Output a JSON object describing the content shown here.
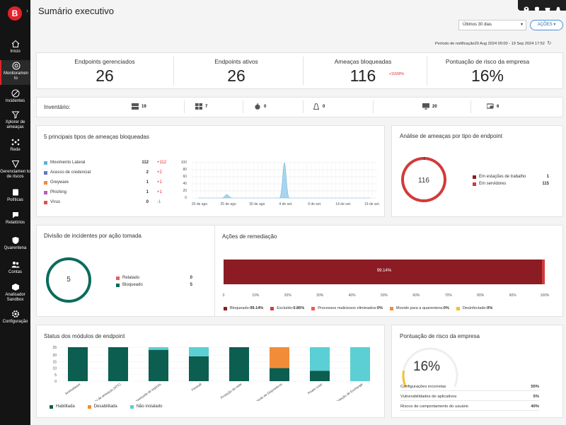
{
  "app": {
    "logo_letter": "B",
    "title": "Sumário executivo"
  },
  "sidebar": {
    "items": [
      {
        "label": "Início",
        "icon": "home-icon"
      },
      {
        "label": "Monitoramen to",
        "icon": "monitor-icon",
        "active": true
      },
      {
        "label": "Incidentes",
        "icon": "incidents-icon"
      },
      {
        "label": "Xplorer de ameaças",
        "icon": "filter-icon"
      },
      {
        "label": "Rede",
        "icon": "network-icon"
      },
      {
        "label": "Gerenciamen to de riscos",
        "icon": "risk-icon"
      },
      {
        "label": "Políticas",
        "icon": "policies-icon"
      },
      {
        "label": "Relatórios",
        "icon": "reports-icon"
      },
      {
        "label": "Quarentena",
        "icon": "quarantine-icon"
      },
      {
        "label": "Contas",
        "icon": "accounts-icon"
      },
      {
        "label": "Analisador Sandbox",
        "icon": "sandbox-icon"
      },
      {
        "label": "Configuração",
        "icon": "settings-icon"
      }
    ]
  },
  "header": {
    "period_select": "Últimos 30 dias",
    "actions_button": "AÇÕES",
    "notification_period": "Período de notificação20 Aug 2024 00:00 - 19 Sep 2024 17:52"
  },
  "kpis": [
    {
      "label": "Endpoints gerenciados",
      "value": "26"
    },
    {
      "label": "Endpoints ativos",
      "value": "26"
    },
    {
      "label": "Ameaças bloqueadas",
      "value": "116",
      "delta": "+11500%"
    },
    {
      "label": "Pontuação de risco da empresa",
      "value": "16%"
    }
  ],
  "inventory": {
    "label": "Inventário:",
    "items": [
      {
        "icon": "windows-server-icon",
        "count": "19"
      },
      {
        "icon": "windows-icon",
        "count": "7"
      },
      {
        "icon": "apple-icon",
        "count": "0"
      },
      {
        "icon": "linux-icon",
        "count": "0"
      },
      {
        "icon": "monitor-device-icon",
        "count": "20"
      },
      {
        "icon": "virtual-machine-icon",
        "count": "6"
      }
    ]
  },
  "threat_types": {
    "title": "5 principais tipos de ameaças bloqueadas",
    "rows": [
      {
        "name": "Movimento Lateral",
        "count": "112",
        "change": "+112",
        "color": "#5fb0d9",
        "dir": "up"
      },
      {
        "name": "Acesso de credencial",
        "count": "2",
        "change": "+2",
        "color": "#6a73c4",
        "dir": "up"
      },
      {
        "name": "Greyware",
        "count": "1",
        "change": "+1",
        "color": "#f28c38",
        "dir": "up"
      },
      {
        "name": "Phishing",
        "count": "1",
        "change": "+1",
        "color": "#b55dbd",
        "dir": "up"
      },
      {
        "name": "Vírus",
        "count": "0",
        "change": "-1",
        "color": "#d9534f",
        "dir": "down"
      }
    ]
  },
  "threat_chart": {
    "yticks": [
      "100",
      "80",
      "60",
      "40",
      "20",
      "0"
    ],
    "xticks": [
      "20 de ago",
      "25 de ago",
      "30 de ago",
      "4 de set.",
      "9 de set.",
      "14 de set.",
      "19 de set."
    ]
  },
  "endpoint_analysis": {
    "title": "Análise de ameaças por tipo de endpoint",
    "total": "116",
    "rows": [
      {
        "name": "Em estações de trabalho",
        "value": "1",
        "color": "#8b1c24"
      },
      {
        "name": "Em servidores",
        "value": "115",
        "color": "#d23a3a"
      }
    ]
  },
  "incidents": {
    "title": "Divisão de incidentes por ação tomada",
    "total": "5",
    "rows": [
      {
        "name": "Relatado",
        "value": "0",
        "color": "#f05a5a"
      },
      {
        "name": "Bloqueado",
        "value": "5",
        "color": "#0b6b5c"
      }
    ]
  },
  "remediation": {
    "title": "Ações de remediação",
    "bar_label": "99.14%",
    "xticks": [
      "0",
      "10%",
      "20%",
      "30%",
      "40%",
      "50%",
      "60%",
      "70%",
      "80%",
      "90%",
      "100%"
    ],
    "legend": [
      {
        "name": "Bloqueado:",
        "value": "99.14%",
        "color": "#8b1c24"
      },
      {
        "name": "Excluído:",
        "value": "0.86%",
        "color": "#d23a3a"
      },
      {
        "name": "Processos maliciosos eliminados:",
        "value": "0%",
        "color": "#f05a5a"
      },
      {
        "name": "Movido para a quarentena:",
        "value": "0%",
        "color": "#f28c38"
      },
      {
        "name": "Desinfectado:",
        "value": "0%",
        "color": "#f2c12e"
      }
    ]
  },
  "modules": {
    "title": "Status dos módulos de endpoint",
    "legend": [
      {
        "name": "Habilitada",
        "color": "#0b5e50"
      },
      {
        "name": "Desabilitada",
        "color": "#f28c38"
      },
      {
        "name": "Não instalado",
        "color": "#5bcfd3"
      }
    ]
  },
  "risk_score": {
    "title": "Pontuação de risco da empresa",
    "value": "16%",
    "rows": [
      {
        "name": "Configurações incorretas",
        "value": "55%"
      },
      {
        "name": "Vulnerabilidades de aplicativos",
        "value": "5%"
      },
      {
        "name": "Riscos de comportamento do usuário",
        "value": "40%"
      }
    ]
  },
  "chart_data": [
    {
      "type": "area",
      "title": "5 principais tipos de ameaças bloqueadas",
      "x": [
        "20 de ago",
        "25 de ago",
        "30 de ago",
        "4 de set.",
        "9 de set.",
        "14 de set.",
        "19 de set."
      ],
      "series": [
        {
          "values": [
            0,
            10,
            0,
            100,
            0,
            0,
            0
          ]
        }
      ],
      "ylim": [
        0,
        100
      ]
    },
    {
      "type": "pie",
      "title": "Análise de ameaças por tipo de endpoint",
      "categories": [
        "Em estações de trabalho",
        "Em servidores"
      ],
      "values": [
        1,
        115
      ]
    },
    {
      "type": "pie",
      "title": "Divisão de incidentes por ação tomada",
      "categories": [
        "Relatado",
        "Bloqueado"
      ],
      "values": [
        0,
        5
      ]
    },
    {
      "type": "bar",
      "title": "Ações de remediação",
      "categories": [
        "Bloqueado",
        "Excluído",
        "Processos maliciosos eliminados",
        "Movido para a quarentena",
        "Desinfectado"
      ],
      "values": [
        99.14,
        0.86,
        0,
        0,
        0
      ]
    },
    {
      "type": "bar",
      "title": "Status dos módulos de endpoint",
      "categories": [
        "Antimalware",
        "Controle avançado de ameaças (ATC)",
        "Detecção avançada de exploits",
        "Firewall",
        "Proteção de rede",
        "Controle de Dispositivos",
        "Power User",
        "Proteção de Exchange"
      ],
      "series": [
        {
          "name": "Habilitada",
          "values": [
            26,
            26,
            24,
            19,
            26,
            10,
            8,
            0
          ]
        },
        {
          "name": "Desabilitada",
          "values": [
            0,
            0,
            0,
            0,
            0,
            16,
            0,
            0
          ]
        },
        {
          "name": "Não instalado",
          "values": [
            0,
            0,
            2,
            7,
            0,
            0,
            18,
            26
          ]
        }
      ],
      "yticks": [
        "26",
        "20",
        "15",
        "10",
        "5",
        "0"
      ],
      "ylim": [
        0,
        26
      ]
    }
  ]
}
